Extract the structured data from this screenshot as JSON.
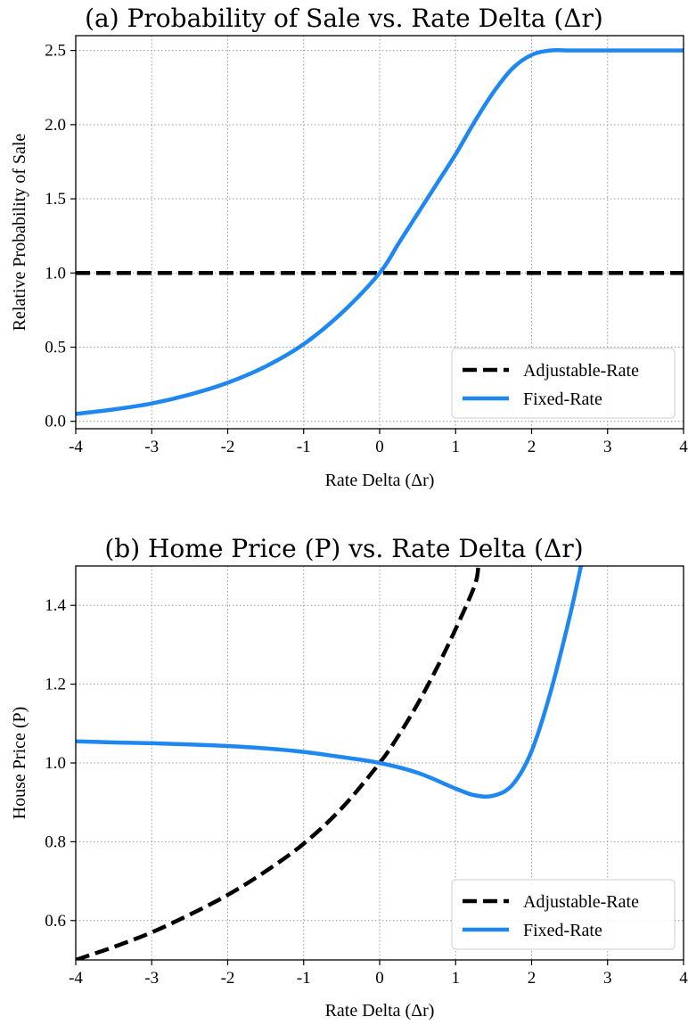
{
  "chart_data": [
    {
      "type": "line",
      "title": "(a) Probability of Sale vs. Rate Delta (Δr)",
      "xlabel": "Rate Delta (Δr)",
      "ylabel": "Relative Probability of Sale",
      "xlim": [
        -4,
        4
      ],
      "ylim": [
        -0.05,
        2.6
      ],
      "xticks": [
        -4,
        -3,
        -2,
        -1,
        0,
        1,
        2,
        3,
        4
      ],
      "xtick_labels": [
        "-4",
        "-3",
        "-2",
        "-1",
        "0",
        "1",
        "2",
        "3",
        "4"
      ],
      "yticks": [
        0.0,
        0.5,
        1.0,
        1.5,
        2.0,
        2.5
      ],
      "ytick_labels": [
        "0.0",
        "0.5",
        "1.0",
        "1.5",
        "2.0",
        "2.5"
      ],
      "grid": true,
      "legend_position": "lower-right",
      "series": [
        {
          "name": "Adjustable-Rate",
          "color": "#000000",
          "style": "dashed",
          "x": [
            -4,
            4
          ],
          "y": [
            1.0,
            1.0
          ]
        },
        {
          "name": "Fixed-Rate",
          "color": "#1f88f0",
          "style": "solid",
          "x": [
            -4,
            -3.5,
            -3,
            -2.5,
            -2,
            -1.5,
            -1,
            -0.5,
            0,
            0.25,
            0.5,
            0.75,
            1,
            1.25,
            1.5,
            1.75,
            2,
            2.25,
            2.5,
            3,
            3.5,
            4
          ],
          "y": [
            0.05,
            0.08,
            0.12,
            0.18,
            0.26,
            0.37,
            0.52,
            0.73,
            1.0,
            1.2,
            1.4,
            1.6,
            1.8,
            2.02,
            2.22,
            2.38,
            2.47,
            2.5,
            2.5,
            2.5,
            2.5,
            2.5
          ]
        }
      ]
    },
    {
      "type": "line",
      "title": "(b) Home Price (P) vs. Rate Delta (Δr)",
      "xlabel": "Rate Delta (Δr)",
      "ylabel": "House Price (P)",
      "xlim": [
        -4,
        4
      ],
      "ylim": [
        0.5,
        1.5
      ],
      "xticks": [
        -4,
        -3,
        -2,
        -1,
        0,
        1,
        2,
        3,
        4
      ],
      "xtick_labels": [
        "-4",
        "-3",
        "-2",
        "-1",
        "0",
        "1",
        "2",
        "3",
        "4"
      ],
      "yticks": [
        0.6,
        0.8,
        1.0,
        1.2,
        1.4
      ],
      "ytick_labels": [
        "0.6",
        "0.8",
        "1.0",
        "1.2",
        "1.4"
      ],
      "grid": true,
      "legend_position": "lower-right",
      "series": [
        {
          "name": "Adjustable-Rate",
          "color": "#000000",
          "style": "dashed",
          "x": [
            -4,
            -3.5,
            -3,
            -2.5,
            -2,
            -1.5,
            -1,
            -0.5,
            0,
            0.25,
            0.5,
            0.75,
            1,
            1.25,
            1.3
          ],
          "y": [
            0.5,
            0.533,
            0.57,
            0.615,
            0.665,
            0.725,
            0.795,
            0.885,
            1.0,
            1.07,
            1.15,
            1.24,
            1.34,
            1.45,
            1.5
          ]
        },
        {
          "name": "Fixed-Rate",
          "color": "#1f88f0",
          "style": "solid",
          "x": [
            -4,
            -3.5,
            -3,
            -2.5,
            -2,
            -1.5,
            -1,
            -0.5,
            0,
            0.5,
            1,
            1.25,
            1.5,
            1.75,
            2,
            2.25,
            2.5,
            2.65
          ],
          "y": [
            1.055,
            1.052,
            1.05,
            1.047,
            1.043,
            1.037,
            1.028,
            1.015,
            1.0,
            0.975,
            0.935,
            0.918,
            0.917,
            0.945,
            1.03,
            1.18,
            1.37,
            1.5
          ]
        }
      ]
    }
  ]
}
